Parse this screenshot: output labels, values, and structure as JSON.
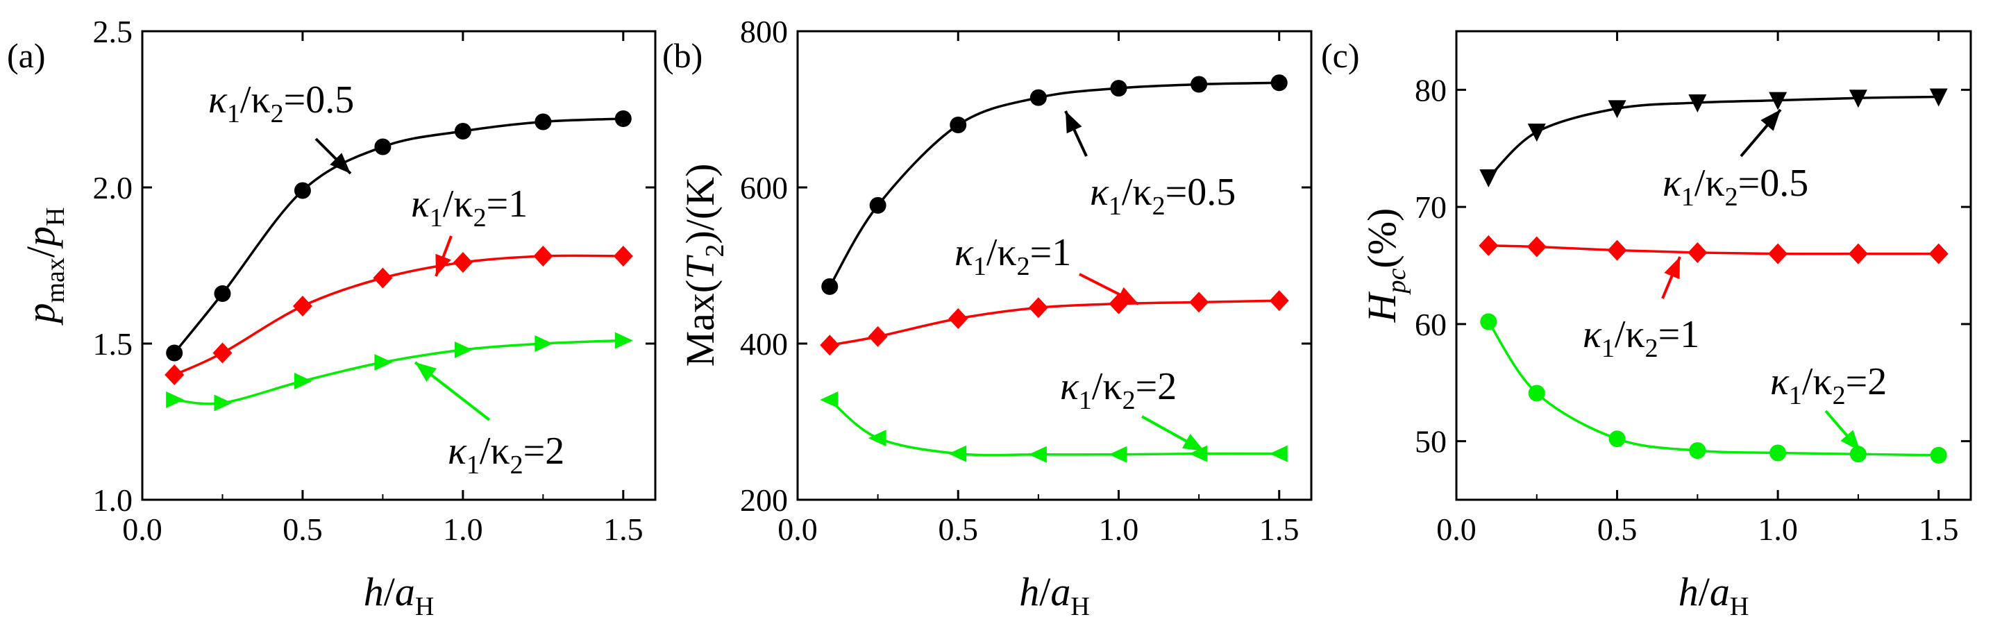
{
  "chart_data": [
    {
      "panel": "(a)",
      "type": "line",
      "xlabel": "h/aH",
      "ylabel": "pmax/pH",
      "xlim": [
        0.0,
        1.6
      ],
      "ylim": [
        1.0,
        2.5
      ],
      "xticks": [
        "0.0",
        "0.5",
        "1.0",
        "1.5"
      ],
      "yticks": [
        "1.0",
        "1.5",
        "2.0",
        "2.5"
      ],
      "x": [
        0.1,
        0.25,
        0.5,
        0.75,
        1.0,
        1.25,
        1.5
      ],
      "series": [
        {
          "name": "κ1/κ2=0.5",
          "color": "#000000",
          "marker": "circle",
          "values": [
            1.47,
            1.66,
            1.99,
            2.13,
            2.18,
            2.21,
            2.22
          ]
        },
        {
          "name": "κ1/κ2=1",
          "color": "#ff0000",
          "marker": "diamond",
          "values": [
            1.4,
            1.47,
            1.62,
            1.71,
            1.76,
            1.78,
            1.78
          ]
        },
        {
          "name": "κ1/κ2=2",
          "color": "#00ee00",
          "marker": "triangle-right",
          "values": [
            1.32,
            1.31,
            1.38,
            1.44,
            1.48,
            1.5,
            1.51
          ]
        }
      ]
    },
    {
      "panel": "(b)",
      "type": "line",
      "xlabel": "h/aH",
      "ylabel": "Max(T2)/(K)",
      "xlim": [
        0.0,
        1.6
      ],
      "ylim": [
        200,
        800
      ],
      "xticks": [
        "0.0",
        "0.5",
        "1.0",
        "1.5"
      ],
      "yticks": [
        "200",
        "400",
        "600",
        "800"
      ],
      "x": [
        0.1,
        0.25,
        0.5,
        0.75,
        1.0,
        1.25,
        1.5
      ],
      "series": [
        {
          "name": "κ1/κ2=0.5",
          "color": "#000000",
          "marker": "circle",
          "values": [
            473,
            577,
            680,
            715,
            727,
            732,
            734
          ]
        },
        {
          "name": "κ1/κ2=1",
          "color": "#ff0000",
          "marker": "diamond",
          "values": [
            398,
            409,
            432,
            446,
            451,
            453,
            455
          ]
        },
        {
          "name": "κ1/κ2=2",
          "color": "#00ee00",
          "marker": "triangle-left",
          "values": [
            328,
            279,
            259,
            258,
            258,
            259,
            259
          ]
        }
      ]
    },
    {
      "panel": "(c)",
      "type": "line",
      "xlabel": "h/aH",
      "ylabel": "Hpc(%)",
      "xlim": [
        0.0,
        1.6
      ],
      "ylim": [
        45,
        85
      ],
      "xticks": [
        "0.0",
        "0.5",
        "1.0",
        "1.5"
      ],
      "yticks": [
        "50",
        "60",
        "70",
        "80"
      ],
      "x": [
        0.1,
        0.25,
        0.5,
        0.75,
        1.0,
        1.25,
        1.5
      ],
      "series": [
        {
          "name": "κ1/κ2=0.5",
          "color": "#000000",
          "marker": "triangle-down",
          "values": [
            72.5,
            76.4,
            78.4,
            78.9,
            79.1,
            79.3,
            79.4
          ]
        },
        {
          "name": "κ1/κ2=1",
          "color": "#ff0000",
          "marker": "diamond",
          "values": [
            66.7,
            66.6,
            66.3,
            66.1,
            66.0,
            66.0,
            66.0
          ]
        },
        {
          "name": "κ1/κ2=2",
          "color": "#00ee00",
          "marker": "circle",
          "values": [
            60.2,
            54.1,
            50.2,
            49.2,
            49.0,
            48.9,
            48.8
          ]
        }
      ]
    }
  ],
  "annotations": [
    {
      "base": "κ",
      "sub1": "1",
      "mid": "/κ",
      "sub2": "2",
      "tail": "=0.5"
    },
    {
      "base": "κ",
      "sub1": "1",
      "mid": "/κ",
      "sub2": "2",
      "tail": "=1"
    },
    {
      "base": "κ",
      "sub1": "1",
      "mid": "/κ",
      "sub2": "2",
      "tail": "=2"
    }
  ],
  "axis_text": {
    "a": {
      "y_main": "p",
      "y_sub": "max",
      "y_slash": "/",
      "y_main2": "p",
      "y_sub2": "H"
    },
    "b": {
      "y_pre": "Max(",
      "y_main": "T",
      "y_sub": "2",
      "y_post": ")/(K)"
    },
    "c": {
      "y_main": "H",
      "y_sub": "pc",
      "y_post": "(%)"
    },
    "x": {
      "main": "h",
      "slash": "/",
      "main2": "a",
      "sub": "H"
    }
  }
}
